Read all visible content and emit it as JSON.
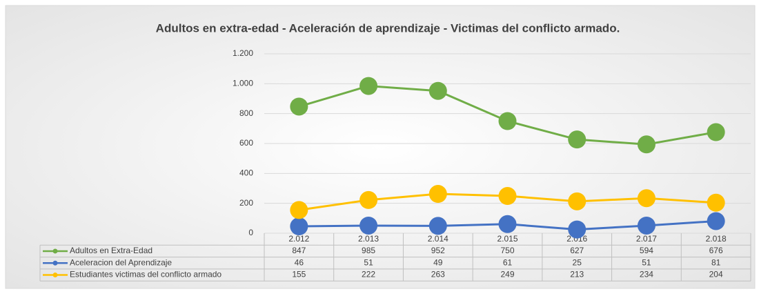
{
  "chart_data": {
    "type": "line",
    "title": "Adultos en extra-edad - Aceleración de aprendizaje - Victimas del conflicto armado.",
    "categories": [
      "2.012",
      "2.013",
      "2.014",
      "2.015",
      "2.016",
      "2.017",
      "2.018"
    ],
    "series": [
      {
        "name": "Adultos en Extra-Edad",
        "color": "#70ad47",
        "values": [
          847,
          985,
          952,
          750,
          627,
          594,
          676
        ]
      },
      {
        "name": "Aceleracion del Aprendizaje",
        "color": "#4472c4",
        "values": [
          46,
          51,
          49,
          61,
          25,
          51,
          81
        ]
      },
      {
        "name": "Estudiantes victimas del conflicto armado",
        "color": "#ffc000",
        "values": [
          155,
          222,
          263,
          249,
          213,
          234,
          204
        ]
      }
    ],
    "ylim": [
      0,
      1200
    ],
    "yticks": [
      0,
      200,
      400,
      600,
      800,
      {
        "value": 1000,
        "label": "1.000"
      },
      {
        "value": 1200,
        "label": "1.200"
      }
    ],
    "grid": true
  }
}
